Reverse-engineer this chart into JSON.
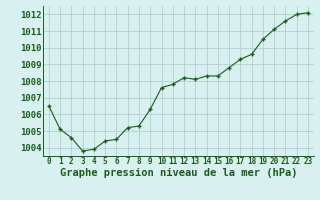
{
  "x": [
    0,
    1,
    2,
    3,
    4,
    5,
    6,
    7,
    8,
    9,
    10,
    11,
    12,
    13,
    14,
    15,
    16,
    17,
    18,
    19,
    20,
    21,
    22,
    23
  ],
  "y": [
    1006.5,
    1005.1,
    1004.6,
    1003.8,
    1003.9,
    1004.4,
    1004.5,
    1005.2,
    1005.3,
    1006.3,
    1007.6,
    1007.8,
    1008.2,
    1008.1,
    1008.3,
    1008.3,
    1008.8,
    1009.3,
    1009.6,
    1010.5,
    1011.1,
    1011.6,
    1012.0,
    1012.1
  ],
  "ylim": [
    1003.5,
    1012.5
  ],
  "yticks": [
    1004,
    1005,
    1006,
    1007,
    1008,
    1009,
    1010,
    1011,
    1012
  ],
  "xlabel": "Graphe pression niveau de la mer (hPa)",
  "line_color": "#1a5c1a",
  "marker_color": "#1a5c1a",
  "bg_color": "#d8f0f0",
  "grid_color": "#b0d0d0",
  "xlabel_color": "#1a5c1a",
  "tick_color": "#1a5c1a",
  "xlabel_fontsize": 7.5,
  "ytick_fontsize": 6.5,
  "xtick_fontsize": 5.5
}
